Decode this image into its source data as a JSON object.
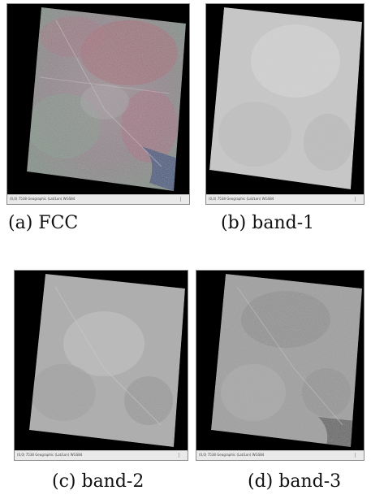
{
  "panels": [
    {
      "id": "a",
      "caption": "(a) FCC",
      "status": "(0,0) 7538   Geographic (Lat/Lon) WGS84"
    },
    {
      "id": "b",
      "caption": "(b) band-1",
      "status": "(0,0) 7538   Geographic (Lat/Lon) WGS84"
    },
    {
      "id": "c",
      "caption": "(c) band-2",
      "status": "(0,0) 7538   Geographic (Lat/Lon) WGS84"
    },
    {
      "id": "d",
      "caption": "(d) band-3",
      "status": "(0,0) 7538   Geographic (Lat/Lon) WGS84"
    }
  ],
  "colors": {
    "background": "#000000",
    "fcc_base": "#8a7f86",
    "fcc_red": "#a5606e",
    "fcc_green": "#7f9788",
    "fcc_water": "#3e4e78",
    "band1_base": "#c9c9c9",
    "band2_base": "#a9a9a9",
    "band3_base": "#9a9a9a"
  }
}
